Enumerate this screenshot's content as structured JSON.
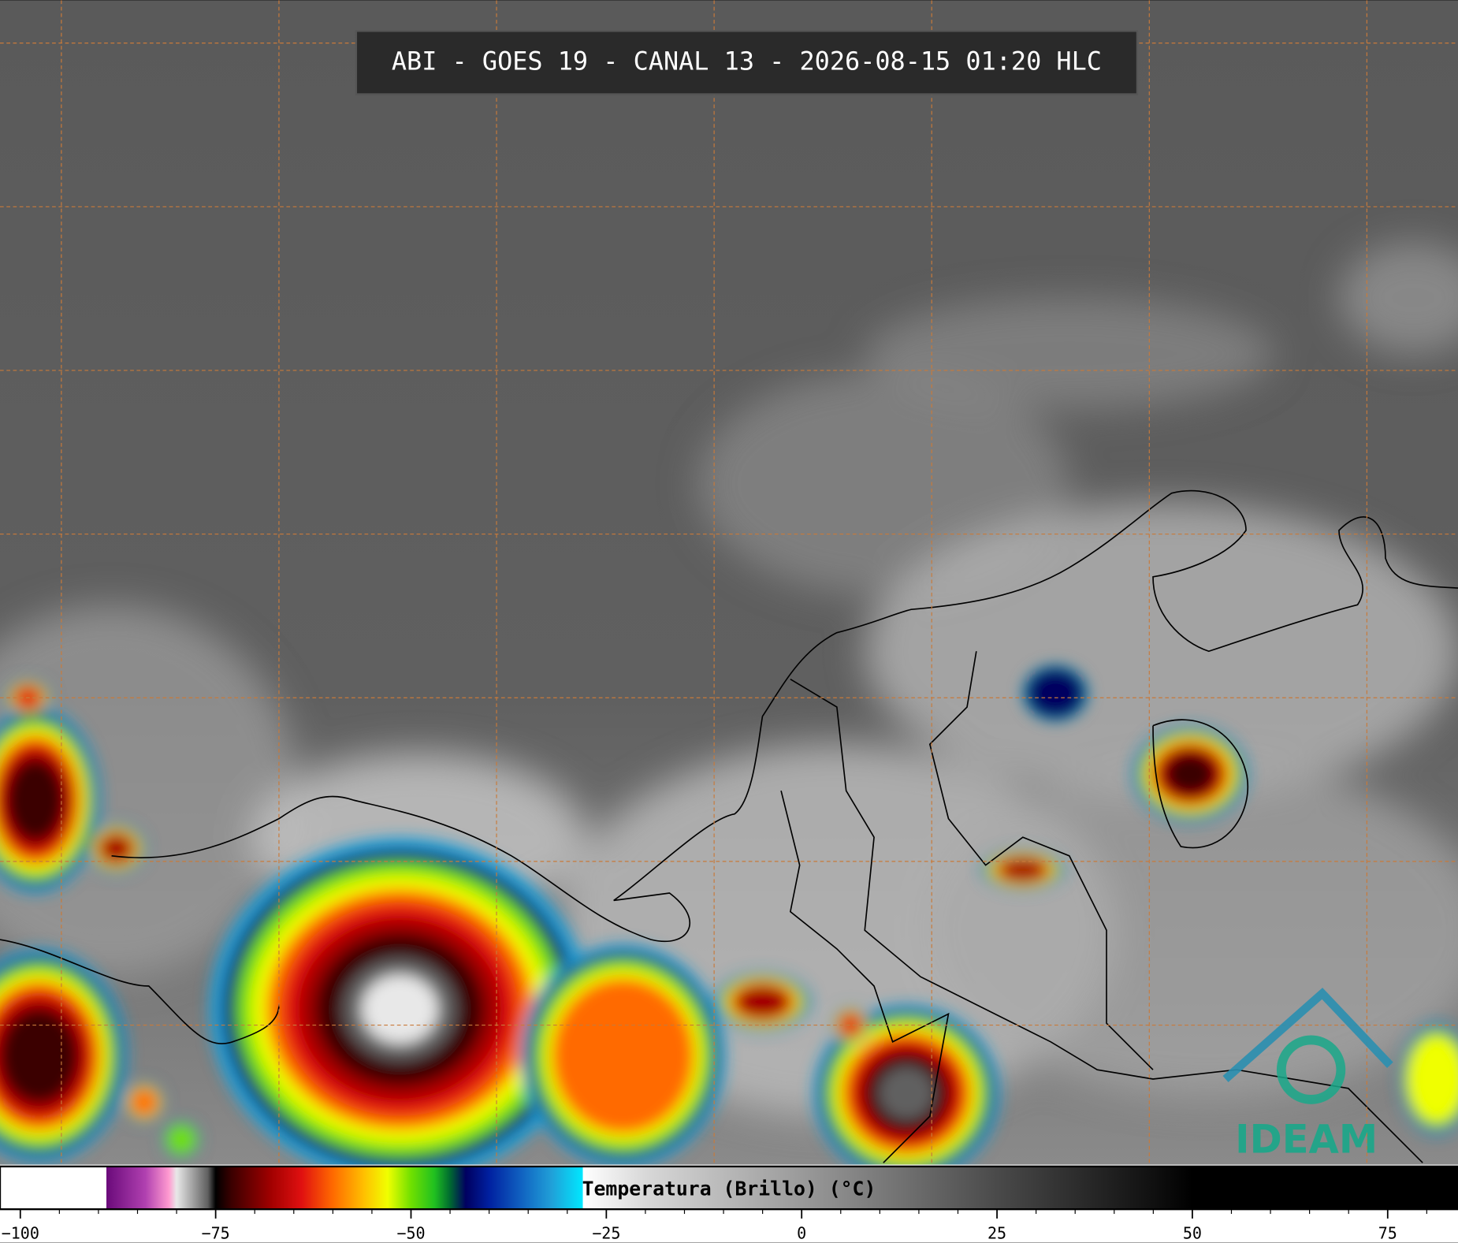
{
  "chart_data": {
    "type": "satellite-image",
    "title": "ABI - GOES 19 - CANAL 13 - 2026-08-15 01:20 HLC",
    "colorbar_label": "Temperatura (Brillo) (°C)",
    "logo_text": "IDEAM",
    "xlim": [
      -102.6,
      84
    ],
    "xticks": [
      {
        "value": -100,
        "label": "−100"
      },
      {
        "value": -75,
        "label": "−75"
      },
      {
        "value": -50,
        "label": "−50"
      },
      {
        "value": -25,
        "label": "−25"
      },
      0,
      25,
      50,
      75
    ],
    "minor_ticks": [
      -95,
      -90,
      -85,
      -80,
      -70,
      -65,
      -60,
      -55,
      -45,
      -40,
      -35,
      -30,
      -20,
      -15,
      -10,
      -5,
      5,
      10,
      15,
      20,
      30,
      35,
      40,
      45,
      55,
      60,
      65,
      70,
      80
    ],
    "colorbar_stops": [
      {
        "value": -102.6,
        "color": "#ffffff"
      },
      {
        "value": -89,
        "color": "#ffffff"
      },
      {
        "value": -89,
        "color": "#6a0a7a"
      },
      {
        "value": -84,
        "color": "#b040b0"
      },
      {
        "value": -81,
        "color": "#ff9ad0"
      },
      {
        "value": -80,
        "color": "#e8e8e8"
      },
      {
        "value": -76,
        "color": "#606060"
      },
      {
        "value": -75,
        "color": "#000000"
      },
      {
        "value": -73,
        "color": "#3a0000"
      },
      {
        "value": -68,
        "color": "#a00000"
      },
      {
        "value": -64,
        "color": "#e01010"
      },
      {
        "value": -60,
        "color": "#ff6a00"
      },
      {
        "value": -56,
        "color": "#ffc000"
      },
      {
        "value": -53,
        "color": "#f0ff00"
      },
      {
        "value": -50,
        "color": "#70e000"
      },
      {
        "value": -47,
        "color": "#20c020"
      },
      {
        "value": -45,
        "color": "#006a30"
      },
      {
        "value": -43,
        "color": "#000060"
      },
      {
        "value": -40,
        "color": "#0020a0"
      },
      {
        "value": -36,
        "color": "#1060c0"
      },
      {
        "value": -32,
        "color": "#20a0d8"
      },
      {
        "value": -28,
        "color": "#00e8ff"
      },
      {
        "value": -28,
        "color": "#ffffff"
      },
      {
        "value": -20,
        "color": "#d8d8d8"
      },
      {
        "value": 0,
        "color": "#9a9a9a"
      },
      {
        "value": 25,
        "color": "#4a4a4a"
      },
      {
        "value": 45,
        "color": "#101010"
      },
      {
        "value": 50,
        "color": "#000000"
      },
      {
        "value": 84,
        "color": "#000000"
      }
    ]
  }
}
